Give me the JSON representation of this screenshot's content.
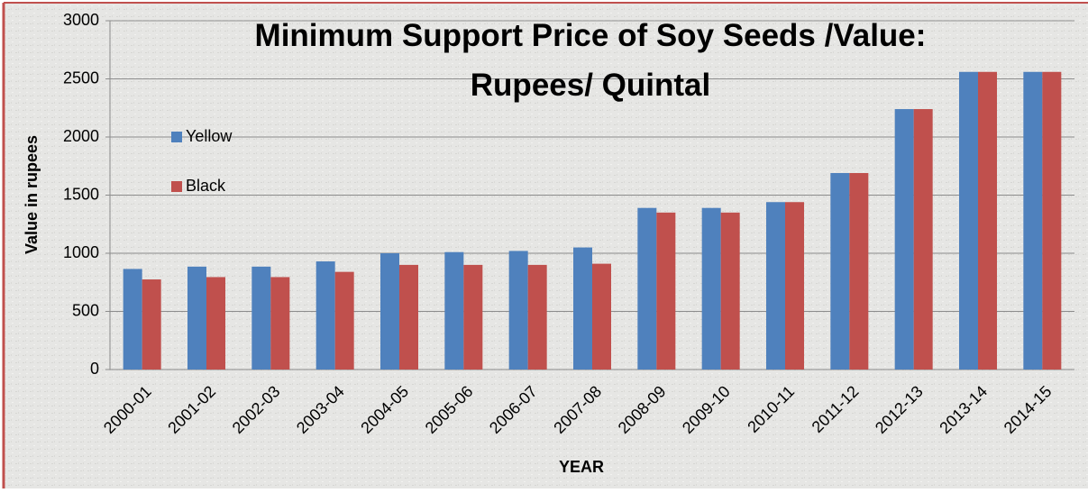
{
  "chart_data": {
    "type": "bar",
    "title": "Minimum Support Price of Soy Seeds /Value: Rupees/ Quintal",
    "x_label": "YEAR",
    "y_label": "Value in rupees",
    "categories": [
      "2000-01",
      "2001-02",
      "2002-03",
      "2003-04",
      "2004-05",
      "2005-06",
      "2006-07",
      "2007-08",
      "2008-09",
      "2009-10",
      "2010-11",
      "2011-12",
      "2012-13",
      "2013-14",
      "2014-15"
    ],
    "series": [
      {
        "name": "Yellow",
        "color": "#4f81bd",
        "values": [
          865,
          885,
          885,
          930,
          1000,
          1010,
          1020,
          1050,
          1390,
          1390,
          1440,
          1690,
          2240,
          2560,
          2560
        ]
      },
      {
        "name": "Black",
        "color": "#c0504d",
        "values": [
          775,
          795,
          795,
          840,
          900,
          900,
          900,
          910,
          1350,
          1350,
          1440,
          1690,
          2240,
          2560,
          2560
        ]
      }
    ],
    "ylim": [
      0,
      3000
    ],
    "yticks": [
      0,
      500,
      1000,
      1500,
      2000,
      2500,
      3000
    ],
    "grid": true,
    "legend": "upper left"
  }
}
